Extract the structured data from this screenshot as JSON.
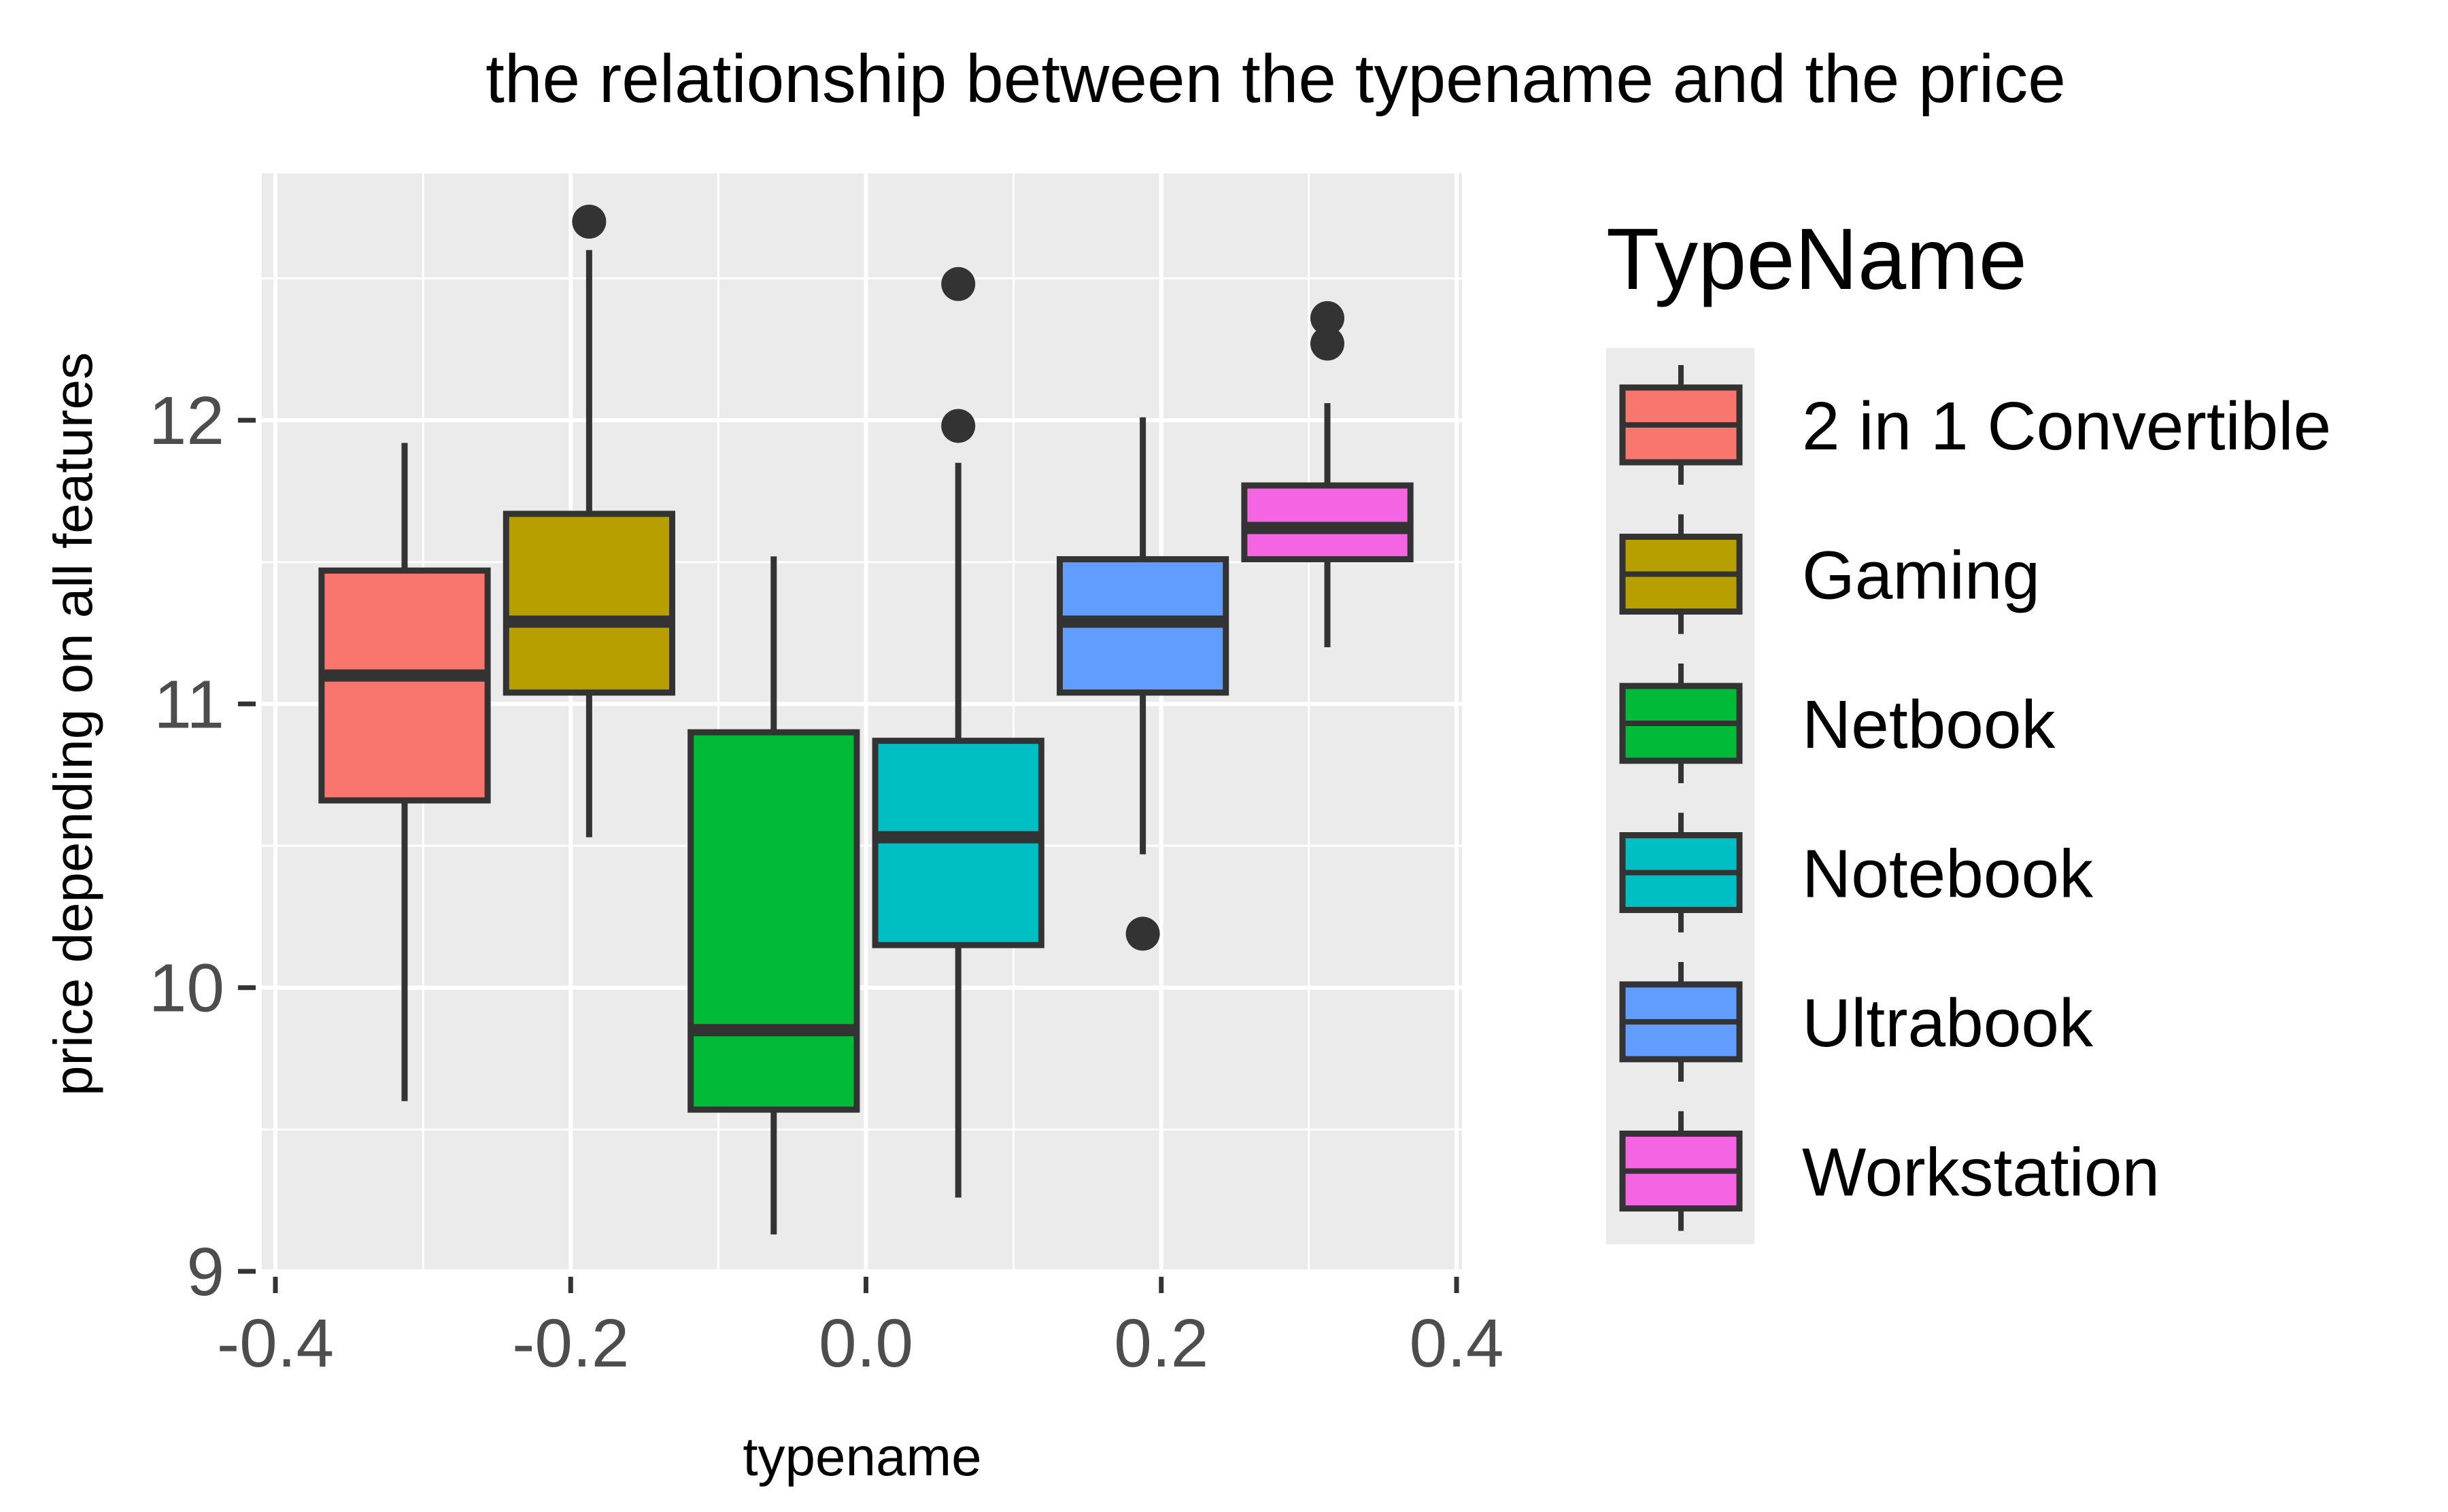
{
  "chart_data": {
    "type": "boxplot",
    "title": "the relationship between the typename and the price",
    "xlabel": "typename",
    "ylabel": "price depending on all features",
    "xlim": [
      -0.4,
      0.4
    ],
    "ylim": [
      9,
      12.9
    ],
    "x_ticks": [
      "-0.4",
      "-0.2",
      "0.0",
      "0.2",
      "0.4"
    ],
    "y_ticks": [
      "9",
      "10",
      "11",
      "12"
    ],
    "grid": true,
    "legend": {
      "title": "TypeName",
      "placement": "right"
    },
    "series": [
      {
        "name": "2 in 1 Convertible",
        "color": "#F8766D",
        "x": -0.3125,
        "whisker_low": 9.6,
        "q1": 10.66,
        "median": 11.1,
        "q3": 11.47,
        "whisker_high": 11.92,
        "outliers": []
      },
      {
        "name": "Gaming",
        "color": "#B79F00",
        "x": -0.1875,
        "whisker_low": 10.53,
        "q1": 11.04,
        "median": 11.29,
        "q3": 11.67,
        "whisker_high": 12.6,
        "outliers": [
          12.7
        ]
      },
      {
        "name": "Netbook",
        "color": "#00BA38",
        "x": -0.0625,
        "whisker_low": 9.13,
        "q1": 9.57,
        "median": 9.85,
        "q3": 10.9,
        "whisker_high": 11.52,
        "outliers": []
      },
      {
        "name": "Notebook",
        "color": "#00BFC4",
        "x": 0.0625,
        "whisker_low": 9.26,
        "q1": 10.15,
        "median": 10.53,
        "q3": 10.87,
        "whisker_high": 11.85,
        "outliers": [
          11.98,
          12.48
        ]
      },
      {
        "name": "Ultrabook",
        "color": "#619CFF",
        "x": 0.1875,
        "whisker_low": 10.47,
        "q1": 11.04,
        "median": 11.29,
        "q3": 11.51,
        "whisker_high": 12.01,
        "outliers": [
          10.19
        ]
      },
      {
        "name": "Workstation",
        "color": "#F564E3",
        "x": 0.3125,
        "whisker_low": 11.2,
        "q1": 11.51,
        "median": 11.62,
        "q3": 11.77,
        "whisker_high": 12.06,
        "outliers": [
          12.27,
          12.36
        ]
      }
    ]
  },
  "colors": {
    "panel_background": "#EBEBEB",
    "grid_major": "#FFFFFF",
    "grid_minor": "#FAFAFA",
    "box_outline": "#333333"
  }
}
